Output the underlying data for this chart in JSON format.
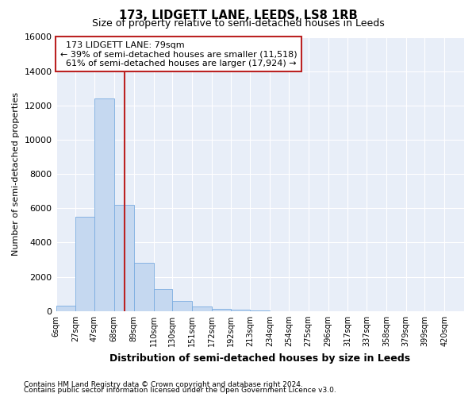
{
  "title": "173, LIDGETT LANE, LEEDS, LS8 1RB",
  "subtitle": "Size of property relative to semi-detached houses in Leeds",
  "xlabel": "Distribution of semi-detached houses by size in Leeds",
  "ylabel": "Number of semi-detached properties",
  "footnote1": "Contains HM Land Registry data © Crown copyright and database right 2024.",
  "footnote2": "Contains public sector information licensed under the Open Government Licence v3.0.",
  "property_size": 79,
  "property_label": "173 LIDGETT LANE: 79sqm",
  "smaller_pct": 39,
  "smaller_count": 11518,
  "larger_pct": 61,
  "larger_count": 17924,
  "bin_labels": [
    "6sqm",
    "27sqm",
    "47sqm",
    "68sqm",
    "89sqm",
    "110sqm",
    "130sqm",
    "151sqm",
    "172sqm",
    "192sqm",
    "213sqm",
    "234sqm",
    "254sqm",
    "275sqm",
    "296sqm",
    "317sqm",
    "337sqm",
    "358sqm",
    "379sqm",
    "399sqm",
    "420sqm"
  ],
  "bin_edges": [
    6,
    27,
    47,
    68,
    89,
    110,
    130,
    151,
    172,
    192,
    213,
    234,
    254,
    275,
    296,
    317,
    337,
    358,
    379,
    399,
    420
  ],
  "bar_values": [
    300,
    5500,
    12400,
    6200,
    2800,
    1300,
    600,
    250,
    150,
    100,
    50,
    0,
    0,
    0,
    0,
    0,
    0,
    0,
    0,
    0
  ],
  "bar_color": "#c5d8f0",
  "bar_edge_color": "#7aace0",
  "vline_color": "#bb2222",
  "vline_x": 79,
  "ylim": [
    0,
    16000
  ],
  "yticks": [
    0,
    2000,
    4000,
    6000,
    8000,
    10000,
    12000,
    14000,
    16000
  ],
  "bg_color": "#e8eef8",
  "grid_color": "#ffffff",
  "annotation_box_edge": "#bb2222",
  "annotation_box_fill": "#ffffff"
}
